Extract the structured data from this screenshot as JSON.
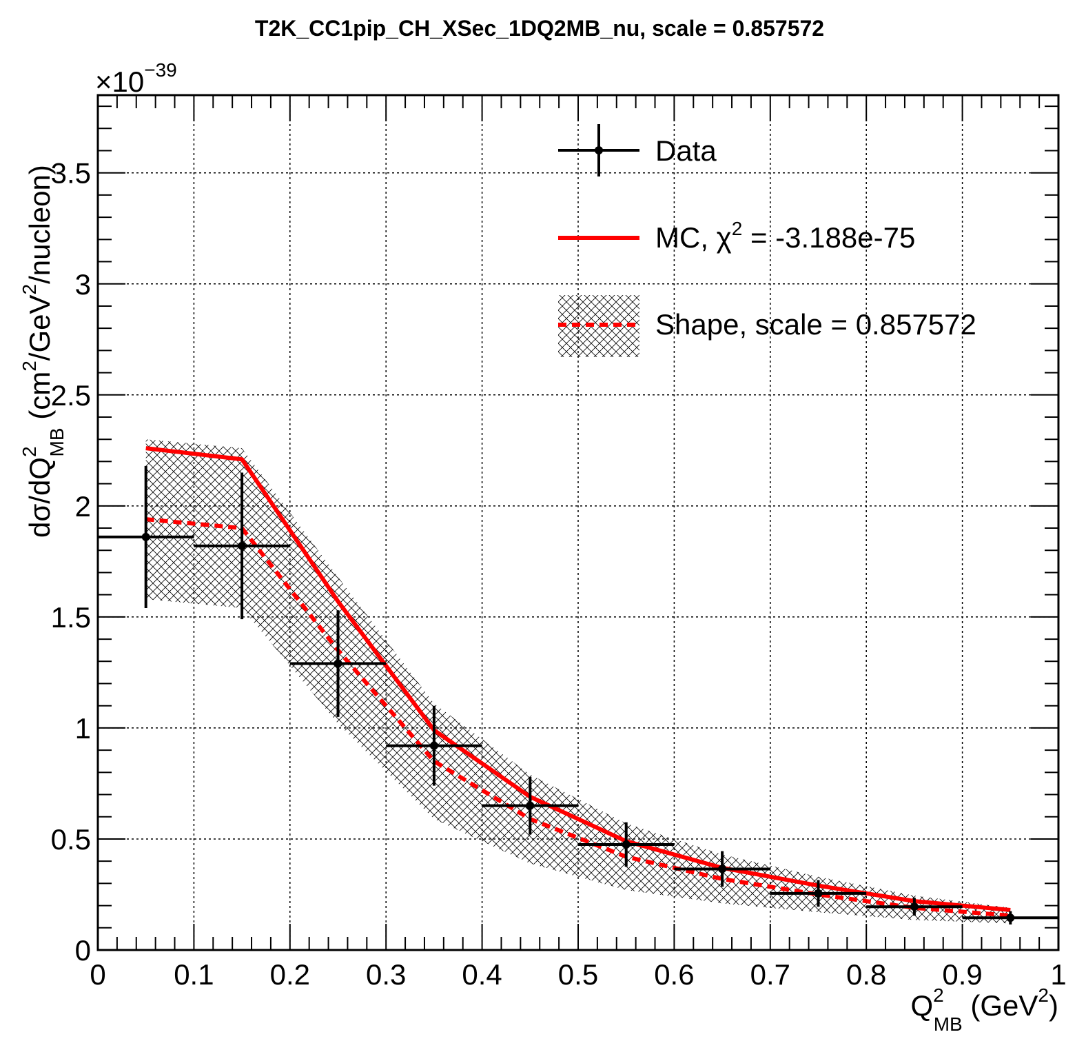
{
  "chart_data": {
    "type": "line",
    "title": "T2K_CC1pip_CH_XSec_1DQ2MB_nu, scale = 0.857572",
    "xlabel": {
      "main": "Q",
      "sup": "2",
      "sub": "MB",
      "unit_open": " (GeV",
      "unit_sup": "2",
      "unit_close": ")"
    },
    "ylabel": {
      "part1": "dσ/dQ",
      "sup1": "2",
      "sub1": "MB",
      "part2": " (cm",
      "sup2": "2",
      "part3": "/GeV",
      "sup3": "2",
      "part4": "/nucleon)"
    },
    "y_exponent": {
      "prefix": "×10",
      "power": "−39"
    },
    "xlim": [
      0,
      1
    ],
    "ylim": [
      0,
      3.85
    ],
    "grid": true,
    "legend_position": "top-right",
    "x_ticks": [
      {
        "v": 0,
        "label": "0"
      },
      {
        "v": 0.1,
        "label": "0.1"
      },
      {
        "v": 0.2,
        "label": "0.2"
      },
      {
        "v": 0.3,
        "label": "0.3"
      },
      {
        "v": 0.4,
        "label": "0.4"
      },
      {
        "v": 0.5,
        "label": "0.5"
      },
      {
        "v": 0.6,
        "label": "0.6"
      },
      {
        "v": 0.7,
        "label": "0.7"
      },
      {
        "v": 0.8,
        "label": "0.8"
      },
      {
        "v": 0.9,
        "label": "0.9"
      },
      {
        "v": 1,
        "label": "1"
      }
    ],
    "y_ticks": [
      {
        "v": 0,
        "label": "0"
      },
      {
        "v": 0.5,
        "label": "0.5"
      },
      {
        "v": 1,
        "label": "1"
      },
      {
        "v": 1.5,
        "label": "1.5"
      },
      {
        "v": 2,
        "label": "2"
      },
      {
        "v": 2.5,
        "label": "2.5"
      },
      {
        "v": 3,
        "label": "3"
      },
      {
        "v": 3.5,
        "label": "3.5"
      }
    ],
    "legend": {
      "data_label": "Data",
      "mc_label_prefix": "MC, χ",
      "mc_label_sup": "2",
      "mc_label_suffix": " = -3.188e-75",
      "shape_label": "Shape, scale = 0.857572"
    },
    "series": [
      {
        "name": "Data",
        "kind": "points_with_errors",
        "color": "#000000",
        "points": [
          {
            "x": 0.05,
            "y": 1.86,
            "xerr": 0.05,
            "yerr_low": 0.32,
            "yerr_high": 0.32
          },
          {
            "x": 0.15,
            "y": 1.82,
            "xerr": 0.05,
            "yerr_low": 0.33,
            "yerr_high": 0.33
          },
          {
            "x": 0.25,
            "y": 1.29,
            "xerr": 0.05,
            "yerr_low": 0.24,
            "yerr_high": 0.24
          },
          {
            "x": 0.35,
            "y": 0.92,
            "xerr": 0.05,
            "yerr_low": 0.18,
            "yerr_high": 0.18
          },
          {
            "x": 0.45,
            "y": 0.65,
            "xerr": 0.05,
            "yerr_low": 0.13,
            "yerr_high": 0.13
          },
          {
            "x": 0.55,
            "y": 0.475,
            "xerr": 0.05,
            "yerr_low": 0.1,
            "yerr_high": 0.1
          },
          {
            "x": 0.65,
            "y": 0.365,
            "xerr": 0.05,
            "yerr_low": 0.08,
            "yerr_high": 0.08
          },
          {
            "x": 0.75,
            "y": 0.255,
            "xerr": 0.05,
            "yerr_low": 0.06,
            "yerr_high": 0.06
          },
          {
            "x": 0.85,
            "y": 0.195,
            "xerr": 0.05,
            "yerr_low": 0.04,
            "yerr_high": 0.04
          },
          {
            "x": 0.95,
            "y": 0.145,
            "xerr": 0.05,
            "yerr_low": 0.03,
            "yerr_high": 0.03
          }
        ]
      },
      {
        "name": "MC",
        "kind": "line",
        "color": "#ff0000",
        "x": [
          0.05,
          0.15,
          0.25,
          0.35,
          0.45,
          0.55,
          0.65,
          0.75,
          0.85,
          0.95
        ],
        "y": [
          2.26,
          2.21,
          1.57,
          0.99,
          0.69,
          0.49,
          0.37,
          0.29,
          0.22,
          0.18
        ]
      },
      {
        "name": "Shape",
        "kind": "dashed_line_with_band",
        "color": "#ff0000",
        "band_color": "#000000",
        "x": [
          0.05,
          0.15,
          0.25,
          0.35,
          0.45,
          0.55,
          0.65,
          0.75,
          0.85,
          0.95
        ],
        "y": [
          1.94,
          1.9,
          1.35,
          0.85,
          0.59,
          0.42,
          0.32,
          0.25,
          0.19,
          0.155
        ],
        "band_half_width": [
          0.36,
          0.36,
          0.33,
          0.26,
          0.2,
          0.15,
          0.11,
          0.08,
          0.055,
          0.035
        ]
      }
    ]
  }
}
